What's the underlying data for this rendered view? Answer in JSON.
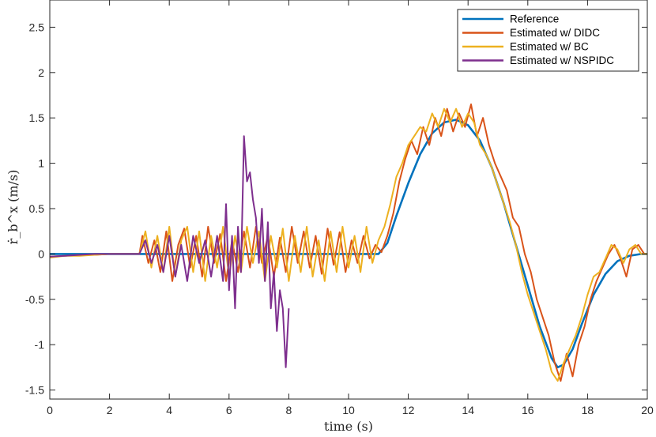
{
  "chart_data": {
    "type": "line",
    "xlabel": "time (s)",
    "ylabel": "ṙ_b^x (m/s)",
    "xlim": [
      0,
      20
    ],
    "ylim": [
      -1.6,
      2.8
    ],
    "xticks": [
      0,
      2,
      4,
      6,
      8,
      10,
      12,
      14,
      16,
      18,
      20
    ],
    "yticks": [
      -1.5,
      -1,
      -0.5,
      0,
      0.5,
      1,
      1.5,
      2,
      2.5
    ],
    "xtick_labels": [
      "0",
      "2",
      "4",
      "6",
      "8",
      "10",
      "12",
      "14",
      "16",
      "18",
      "20"
    ],
    "ytick_labels": [
      "-1.5",
      "-1",
      "-0.5",
      "0",
      "0.5",
      "1",
      "1.5",
      "2",
      "2.5"
    ],
    "grid": false,
    "legend_position": "top-right",
    "series": [
      {
        "name": "Reference",
        "color": "#0072BD",
        "x": [
          0,
          11.0,
          11.3,
          11.6,
          12.0,
          12.4,
          12.8,
          13.2,
          13.6,
          14.0,
          14.4,
          14.8,
          15.2,
          15.6,
          16.0,
          16.4,
          16.8,
          17.0,
          17.2,
          17.5,
          17.8,
          18.2,
          18.6,
          19.0,
          19.4,
          19.8,
          20
        ],
        "y": [
          0,
          0,
          0.12,
          0.42,
          0.78,
          1.1,
          1.33,
          1.45,
          1.48,
          1.42,
          1.25,
          0.95,
          0.55,
          0.1,
          -0.35,
          -0.8,
          -1.15,
          -1.25,
          -1.22,
          -1.05,
          -0.78,
          -0.45,
          -0.22,
          -0.08,
          -0.02,
          0,
          0
        ]
      },
      {
        "name": "Estimated w/ DIDC",
        "color": "#D95319",
        "x": [
          0,
          0.5,
          1.0,
          1.5,
          2.0,
          2.5,
          3.0,
          3.1,
          3.3,
          3.5,
          3.7,
          3.9,
          4.1,
          4.3,
          4.5,
          4.7,
          4.9,
          5.1,
          5.3,
          5.5,
          5.7,
          5.9,
          6.1,
          6.3,
          6.5,
          6.7,
          6.9,
          7.1,
          7.3,
          7.5,
          7.7,
          7.9,
          8.1,
          8.3,
          8.5,
          8.7,
          8.9,
          9.1,
          9.3,
          9.5,
          9.7,
          9.9,
          10.1,
          10.3,
          10.5,
          10.7,
          10.9,
          11.1,
          11.3,
          11.5,
          11.7,
          11.9,
          12.1,
          12.3,
          12.5,
          12.7,
          12.9,
          13.1,
          13.3,
          13.5,
          13.7,
          13.9,
          14.1,
          14.3,
          14.5,
          14.7,
          14.9,
          15.1,
          15.3,
          15.5,
          15.7,
          15.9,
          16.1,
          16.3,
          16.5,
          16.7,
          16.9,
          17.1,
          17.3,
          17.5,
          17.7,
          17.9,
          18.1,
          18.3,
          18.5,
          18.7,
          18.9,
          19.1,
          19.3,
          19.5,
          19.7,
          19.9,
          20
        ],
        "y": [
          -0.03,
          -0.02,
          -0.01,
          -0.01,
          0,
          0,
          0,
          0.2,
          -0.1,
          0.15,
          -0.2,
          0.25,
          -0.3,
          0.1,
          0.28,
          -0.15,
          0.2,
          -0.25,
          0.3,
          -0.1,
          0.22,
          -0.3,
          0.15,
          -0.2,
          0.25,
          -0.15,
          0.3,
          -0.1,
          0.2,
          -0.25,
          0.18,
          -0.2,
          0.3,
          -0.1,
          0.25,
          -0.15,
          0.2,
          -0.22,
          0.28,
          -0.12,
          0.24,
          -0.2,
          0.15,
          -0.1,
          0.2,
          -0.05,
          0.1,
          0.02,
          0.2,
          0.45,
          0.8,
          1.05,
          1.25,
          1.1,
          1.4,
          1.2,
          1.5,
          1.3,
          1.6,
          1.35,
          1.55,
          1.4,
          1.65,
          1.3,
          1.5,
          1.2,
          1.0,
          0.85,
          0.7,
          0.4,
          0.3,
          0.0,
          -0.2,
          -0.5,
          -0.7,
          -0.9,
          -1.2,
          -1.4,
          -1.1,
          -1.35,
          -1.0,
          -0.8,
          -0.5,
          -0.3,
          -0.15,
          0.0,
          0.1,
          -0.05,
          -0.25,
          0.05,
          0.1,
          0.0,
          0.0
        ]
      },
      {
        "name": "Estimated w/ BC",
        "color": "#EDB120",
        "x": [
          0,
          0.5,
          1.0,
          1.5,
          2.0,
          2.5,
          3.0,
          3.2,
          3.4,
          3.6,
          3.8,
          4.0,
          4.2,
          4.4,
          4.6,
          4.8,
          5.0,
          5.2,
          5.4,
          5.6,
          5.8,
          6.0,
          6.2,
          6.4,
          6.6,
          6.8,
          7.0,
          7.2,
          7.4,
          7.6,
          7.8,
          8.0,
          8.2,
          8.4,
          8.6,
          8.8,
          9.0,
          9.2,
          9.4,
          9.6,
          9.8,
          10.0,
          10.2,
          10.4,
          10.6,
          10.8,
          11.0,
          11.2,
          11.4,
          11.6,
          11.8,
          12.0,
          12.2,
          12.4,
          12.6,
          12.8,
          13.0,
          13.2,
          13.4,
          13.6,
          13.8,
          14.0,
          14.2,
          14.4,
          14.6,
          14.8,
          15.0,
          15.2,
          15.4,
          15.6,
          15.8,
          16.0,
          16.2,
          16.4,
          16.6,
          16.8,
          17.0,
          17.2,
          17.4,
          17.6,
          17.8,
          18.0,
          18.2,
          18.4,
          18.6,
          18.8,
          19.0,
          19.2,
          19.4,
          19.6,
          19.8,
          20
        ],
        "y": [
          -0.04,
          -0.02,
          -0.02,
          -0.01,
          0,
          0,
          0,
          0.25,
          -0.15,
          0.2,
          -0.2,
          0.3,
          -0.25,
          0.15,
          0.3,
          -0.2,
          0.25,
          -0.3,
          0.2,
          -0.15,
          0.3,
          -0.25,
          0.2,
          -0.2,
          0.3,
          -0.1,
          0.25,
          -0.3,
          0.2,
          -0.15,
          0.28,
          -0.3,
          0.2,
          -0.2,
          0.3,
          -0.25,
          0.15,
          -0.3,
          0.25,
          -0.2,
          0.3,
          -0.15,
          0.2,
          -0.2,
          0.3,
          -0.1,
          0.15,
          0.3,
          0.55,
          0.85,
          1.0,
          1.2,
          1.3,
          1.4,
          1.35,
          1.55,
          1.4,
          1.6,
          1.45,
          1.6,
          1.4,
          1.55,
          1.45,
          1.2,
          1.1,
          0.95,
          0.75,
          0.55,
          0.35,
          0.1,
          -0.2,
          -0.45,
          -0.65,
          -0.85,
          -1.05,
          -1.3,
          -1.4,
          -1.2,
          -1.05,
          -0.9,
          -0.7,
          -0.45,
          -0.25,
          -0.2,
          -0.05,
          0.1,
          0.05,
          -0.1,
          0.05,
          0.1,
          0.0,
          0.0
        ]
      },
      {
        "name": "Estimated w/ NSPIDC",
        "color": "#7E2F8E",
        "x": [
          0,
          0.5,
          1.0,
          1.5,
          2.0,
          2.5,
          3.0,
          3.2,
          3.4,
          3.6,
          3.8,
          4.0,
          4.2,
          4.4,
          4.6,
          4.8,
          5.0,
          5.2,
          5.4,
          5.6,
          5.8,
          5.9,
          6.0,
          6.1,
          6.2,
          6.3,
          6.4,
          6.5,
          6.6,
          6.7,
          6.8,
          6.9,
          7.0,
          7.1,
          7.2,
          7.3,
          7.4,
          7.5,
          7.6,
          7.7,
          7.8,
          7.9,
          8.0
        ],
        "y": [
          -0.03,
          -0.02,
          -0.01,
          0,
          0,
          0,
          0,
          0.15,
          -0.1,
          0.1,
          -0.2,
          0.2,
          -0.25,
          0.1,
          -0.3,
          0.2,
          -0.1,
          0.15,
          -0.25,
          0.2,
          -0.3,
          0.55,
          -0.4,
          0.2,
          -0.6,
          0.3,
          -0.2,
          1.3,
          0.8,
          0.9,
          0.6,
          0.4,
          -0.1,
          0.5,
          -0.3,
          0.35,
          -0.6,
          -0.2,
          -0.85,
          -0.4,
          -0.6,
          -1.25,
          -0.6
        ]
      }
    ]
  }
}
